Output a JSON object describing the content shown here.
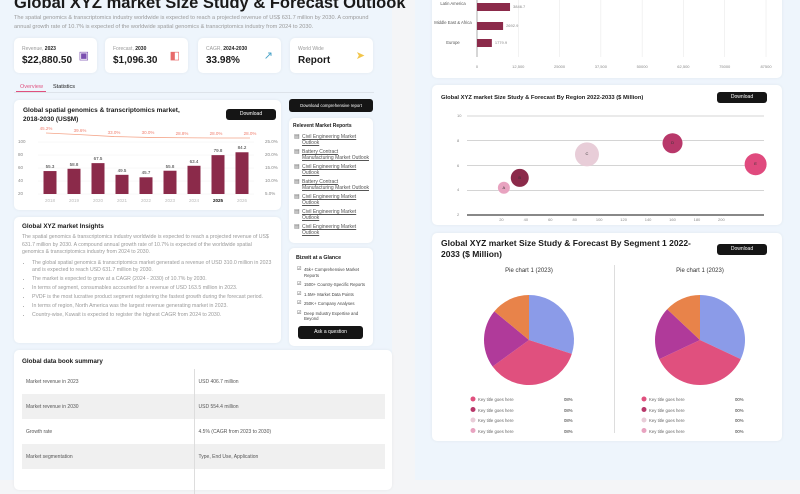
{
  "header": {
    "title": "Global XYZ market Size Study & Forecast Outlook",
    "description": "The spatial genomics & transcriptomics industry worldwide is expected to reach a projected revenue of US$ 631.7 million by 2030. A compound annual growth rate of 10.7% is expected of the worldwide spatial genomics & transcriptomics industry from 2024 to 2030."
  },
  "kpis": [
    {
      "label": "Revenue,",
      "label_bold": "2023",
      "value": "$22,880.50",
      "icon": "briefcase-icon",
      "color": "#7b4fb0"
    },
    {
      "label": "Forecast,",
      "label_bold": "2030",
      "value": "$1,096.30",
      "icon": "wallet-icon",
      "color": "#e86a6a"
    },
    {
      "label": "CAGR,",
      "label_bold": "2024-2030",
      "value": "33.98%",
      "icon": "trend-up-icon",
      "color": "#4aa3c8"
    },
    {
      "label": "World Wide",
      "label_bold": "",
      "value": "Report",
      "icon": "send-icon",
      "color": "#f2c54a"
    }
  ],
  "tabs": [
    {
      "label": "Overview",
      "active": true
    },
    {
      "label": "Statistics",
      "active": false
    }
  ],
  "main_chart": {
    "title": "Global spatial genomics & transcriptomics market, 2018-2030 (US$M)",
    "download": "Download"
  },
  "chart_data": [
    {
      "type": "bar",
      "title": "Global spatial genomics & transcriptomics market, 2018-2030 (US$M)",
      "categories": [
        "2018",
        "2019",
        "2020",
        "2021",
        "2022",
        "2023",
        "2024",
        "2025",
        "2026"
      ],
      "highlight": "2025",
      "values": [
        55.3,
        58.8,
        67.5,
        49.5,
        45.7,
        55.8,
        63.4,
        79.8,
        84.2
      ],
      "ylim": [
        20,
        100
      ],
      "yticks": [
        "100",
        "80",
        "60",
        "40",
        "20"
      ],
      "y2ticks": [
        "25.0%",
        "20.0%",
        "15.0%",
        "10.0%",
        "5.0%"
      ],
      "line": {
        "labels": [
          "45.2%",
          "39.6%",
          "33.0%",
          "30.0%",
          "28.8%",
          "28.0%",
          "28.0%"
        ],
        "values": [
          45.2,
          39.6,
          33.0,
          30.0,
          28.8,
          28.0,
          28.0
        ],
        "color": "#f4a58a"
      },
      "bar_color": "#8b2a4a"
    },
    {
      "type": "bar",
      "orientation": "horizontal",
      "categories": [
        "Latin America",
        "Middle East & Africa",
        "Europe"
      ],
      "values": [
        10000,
        7900,
        4500
      ],
      "labels": [
        "3846.7",
        "2692.9",
        "1779.9"
      ],
      "xlim": [
        0,
        87500
      ],
      "xticks": [
        "0",
        "12,500",
        "25000",
        "37,500",
        "50000",
        "62,500",
        "75000",
        "87500"
      ],
      "bar_color": "#8b2a4a"
    },
    {
      "type": "scatter",
      "title": "Global XYZ market Size Study & Forecast By Region 2022-2033 ($ Million)",
      "xticks": [
        "20",
        "40",
        "60",
        "80",
        "100",
        "120",
        "140",
        "160",
        "180",
        "200"
      ],
      "xlim": [
        0,
        230
      ],
      "ylim": [
        2,
        10
      ],
      "yticks": [
        "10",
        "8",
        "6",
        "4",
        "2"
      ],
      "points": [
        {
          "label": "A",
          "x": 22,
          "y": 4.2,
          "size": 6,
          "color": "#e8a3c0"
        },
        {
          "label": "B",
          "x": 35,
          "y": 5,
          "size": 9,
          "color": "#8b2a4a"
        },
        {
          "label": "C",
          "x": 90,
          "y": 6.9,
          "size": 12,
          "color": "#e8cdd8"
        },
        {
          "label": "D",
          "x": 160,
          "y": 7.8,
          "size": 10,
          "color": "#b8386a"
        },
        {
          "label": "E",
          "x": 228,
          "y": 6.1,
          "size": 11,
          "color": "#e04a7e"
        }
      ]
    },
    {
      "type": "pie",
      "title": "Pie chart 1 (2023)",
      "slices": [
        {
          "value": 30,
          "color": "#8b9be8"
        },
        {
          "value": 35,
          "color": "#e0507e"
        },
        {
          "value": 21,
          "color": "#b03a9a"
        },
        {
          "value": 14,
          "color": "#e8834a"
        }
      ]
    },
    {
      "type": "pie",
      "title": "Pie chart 1 (2023)",
      "slices": [
        {
          "value": 32,
          "color": "#8b9be8"
        },
        {
          "value": 36,
          "color": "#e0507e"
        },
        {
          "value": 19,
          "color": "#b03a9a"
        },
        {
          "value": 13,
          "color": "#e8834a"
        }
      ]
    }
  ],
  "sidebar": {
    "download_label": "Download comprehensive report",
    "reports_title": "Relevent Market Reports",
    "reports": [
      "Civil Engineering Market Outlook",
      "Battery Contract Manufacturing Market Outlook",
      "Civil Engineering Market Outlook",
      "Battery Contract Manufacturing Market Outlook",
      "Civil Engineering Market Outlook",
      "Civil Engineering Market Outlook",
      "Civil Engineering Market Outlook"
    ],
    "glance_title": "Bizwit at a Glance",
    "glance": [
      "45k+ Comprehensive Market Reports",
      "1500+ Country-Specific Reports",
      "1.5M+ Market Data Points",
      "250K+ Company Analyses",
      "Deep Industry Expertise and Beyond"
    ],
    "ask_label": "Ask a question"
  },
  "insights": {
    "title": "Global XYZ market Insights",
    "intro": "The spatial genomics & transcriptomics industry worldwide is expected to reach a projected revenue of US$ 631.7 million by 2030. A compound annual growth rate of 10.7% is expected of the worldwide spatial genomics & transcriptomics industry from 2024 to 2030.",
    "bullets": [
      "The global spatial genomics & transcriptomics market generated a revenue of USD 310.0 million in 2023 and is expected to reach USD 631.7 million by 2030.",
      "The market is expected to grow at a CAGR (2024 - 2030) of 10.7% by 2030.",
      "In terms of segment, consumables accounted for a revenue of USD 163.5 million in 2023.",
      "PVDF is the most lucrative product segment registering the fastest growth during the forecast period.",
      "In terms of region, North America was the largest revenue generating market in 2023.",
      "Country-wise, Kuwait is expected to register the highest CAGR from 2024 to 2030."
    ]
  },
  "databook": {
    "title": "Global data book summary",
    "rows": [
      [
        "Market revenue in 2023",
        "USD 406.7 million"
      ],
      [
        "Market revenue in 2030",
        "USD 554.4 million"
      ],
      [
        "Growth rate",
        "4.5% (CAGR from 2023 to 2030)"
      ],
      [
        "Market segmentation",
        "Type, End Use, Application"
      ],
      [
        "",
        ""
      ]
    ]
  },
  "region_chart": {
    "title": "Global XYZ market Size Study & Forecast By Region 2022-2033 ($ Million)",
    "download": "Download"
  },
  "segment_chart": {
    "title": "Global XYZ market Size Study & Forecast By Segment 1 2022-2033 ($ Million)",
    "download": "Download",
    "legend_left": [
      {
        "label": "Key title goes here",
        "value": "08%",
        "color": "#e0507e"
      },
      {
        "label": "Key title goes here",
        "value": "08%",
        "color": "#b8386a"
      },
      {
        "label": "Key title goes here",
        "value": "08%",
        "color": "#e8cdd8"
      },
      {
        "label": "Key title goes here",
        "value": "08%",
        "color": "#e8a3c0"
      }
    ],
    "legend_right": [
      {
        "label": "Key title goes here",
        "value": "00%",
        "color": "#e0507e"
      },
      {
        "label": "Key title goes here",
        "value": "00%",
        "color": "#b8386a"
      },
      {
        "label": "Key title goes here",
        "value": "00%",
        "color": "#e8cdd8"
      },
      {
        "label": "Key title goes here",
        "value": "00%",
        "color": "#e8a3c0"
      }
    ]
  }
}
